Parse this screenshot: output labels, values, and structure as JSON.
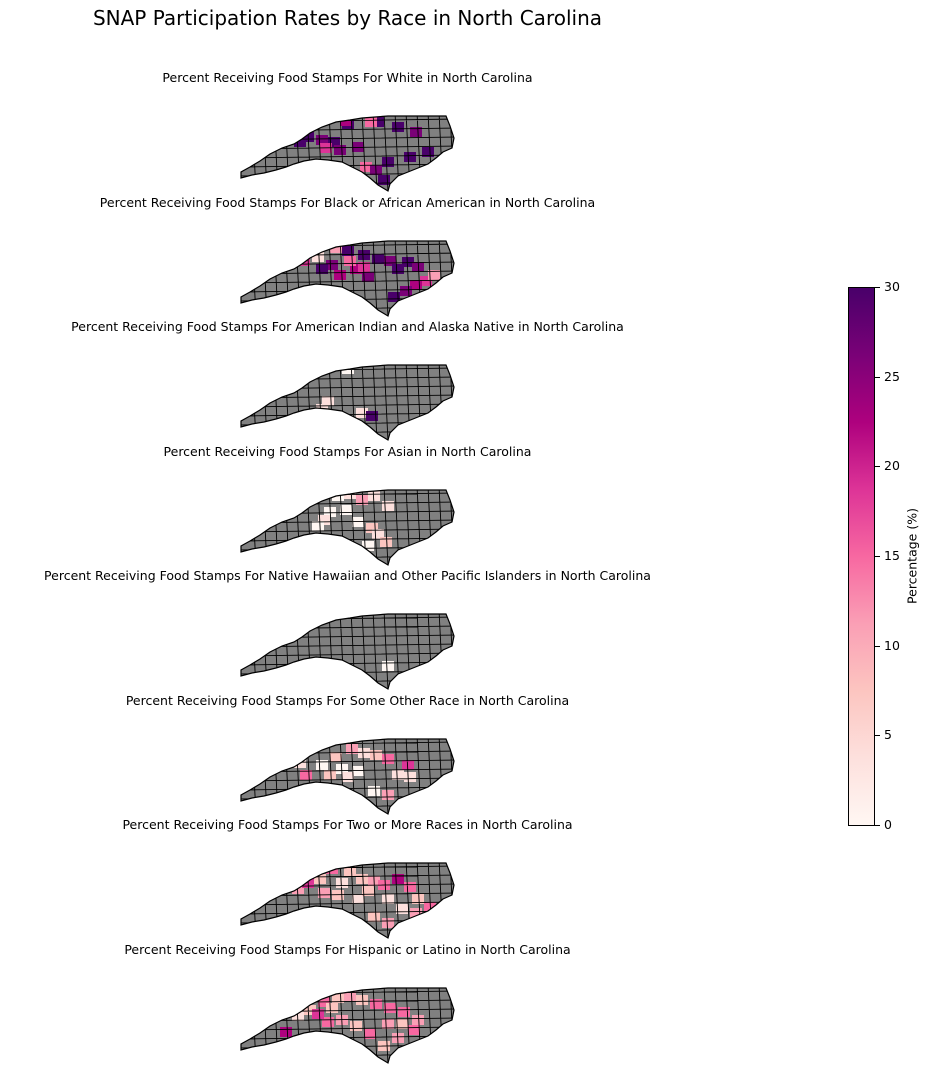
{
  "title": "SNAP Participation Rates by Race in North Carolina",
  "colorbar": {
    "label": "Percentage (%)",
    "min": 0,
    "max": 30,
    "ticks": [
      "0",
      "5",
      "10",
      "15",
      "20",
      "25",
      "30"
    ],
    "colorscale": [
      "#fff7f3",
      "#fde0dd",
      "#fcc5c0",
      "#fa9fb5",
      "#f768a1",
      "#dd3497",
      "#ae017e",
      "#7a0177",
      "#49006a"
    ],
    "no_data_color": "#808080"
  },
  "panels": [
    {
      "title": "Percent Receiving Food Stamps For White in North Carolina"
    },
    {
      "title": "Percent Receiving Food Stamps For Black or African American in North Carolina"
    },
    {
      "title": "Percent Receiving Food Stamps For American Indian and Alaska Native in North Carolina"
    },
    {
      "title": "Percent Receiving Food Stamps For Asian in North Carolina"
    },
    {
      "title": "Percent Receiving Food Stamps For Native Hawaiian and Other Pacific Islanders in North Carolina"
    },
    {
      "title": "Percent Receiving Food Stamps For Some Other Race in North Carolina"
    },
    {
      "title": "Percent Receiving Food Stamps For Two or More Races in North Carolina"
    },
    {
      "title": "Percent Receiving Food Stamps For Hispanic or Latino in North Carolina"
    }
  ]
}
